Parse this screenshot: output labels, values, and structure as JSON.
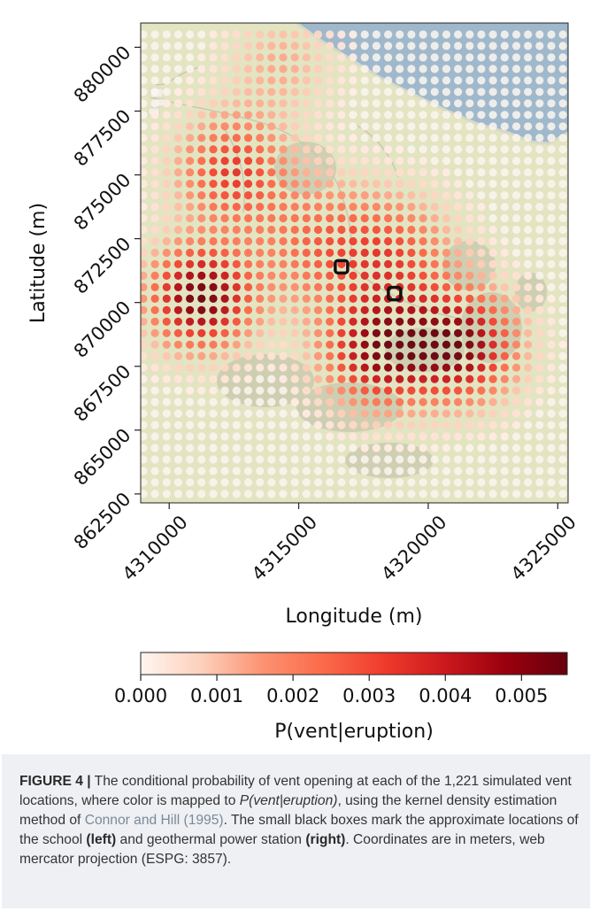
{
  "chart_data": {
    "type": "scatter",
    "xlabel": "Longitude (m)",
    "ylabel": "Latitude (m)",
    "x_ticks": [
      "4310000",
      "4315000",
      "4320000",
      "4325000"
    ],
    "y_ticks": [
      "862500",
      "865000",
      "867500",
      "870000",
      "872500",
      "875000",
      "877500",
      "880000"
    ],
    "xlim": [
      4308900,
      4325400
    ],
    "ylim": [
      862150,
      880950
    ],
    "grid_x_range": [
      4309000,
      4325200
    ],
    "grid_y_range": [
      862500,
      880500
    ],
    "grid_spacing": 450,
    "markers": [
      {
        "name": "school",
        "x": 4316650,
        "y": 871400
      },
      {
        "name": "geothermal power station",
        "x": 4318700,
        "y": 870350
      }
    ],
    "density_peaks": [
      {
        "x": 4311200,
        "y": 870200,
        "sigma": 1400,
        "amp": 0.0055
      },
      {
        "x": 4312400,
        "y": 875200,
        "sigma": 1500,
        "amp": 0.0033
      },
      {
        "x": 4318100,
        "y": 868100,
        "sigma": 1500,
        "amp": 0.0048
      },
      {
        "x": 4321300,
        "y": 868300,
        "sigma": 1500,
        "amp": 0.005
      },
      {
        "x": 4318700,
        "y": 871800,
        "sigma": 1700,
        "amp": 0.0026
      },
      {
        "x": 4315600,
        "y": 872300,
        "sigma": 1800,
        "amp": 0.0022
      },
      {
        "x": 4314300,
        "y": 879400,
        "sigma": 1500,
        "amp": 0.0013
      }
    ],
    "colorbar": {
      "label": "P(vent|eruption)",
      "ticks": [
        "0.000",
        "0.001",
        "0.002",
        "0.003",
        "0.004",
        "0.005"
      ],
      "range": [
        0,
        0.0056
      ],
      "colors": [
        "#fff5f0",
        "#fdd0bb",
        "#fc9272",
        "#fb6a4a",
        "#ef3b2c",
        "#cb181d",
        "#99000d",
        "#67000d"
      ]
    },
    "map_colors": {
      "land": "#e3e4c2",
      "water": "#a0b8cc",
      "dot_empty": "#fbf6ef"
    }
  },
  "caption": {
    "label": "FIGURE 4 |",
    "text1": " The conditional probability of vent opening at each of the 1,221 simulated vent locations, where color is mapped to ",
    "math": "P(vent|eruption)",
    "text2": ", using the kernel density estimation method of ",
    "ref": "Connor and Hill (1995)",
    "text3": ". The small black boxes mark the approximate locations of the school ",
    "left": "(left)",
    "text4": " and geothermal power station ",
    "right": "(right)",
    "text5": ". Coordinates are in meters, web mercator projection (ESPG: 3857)."
  }
}
